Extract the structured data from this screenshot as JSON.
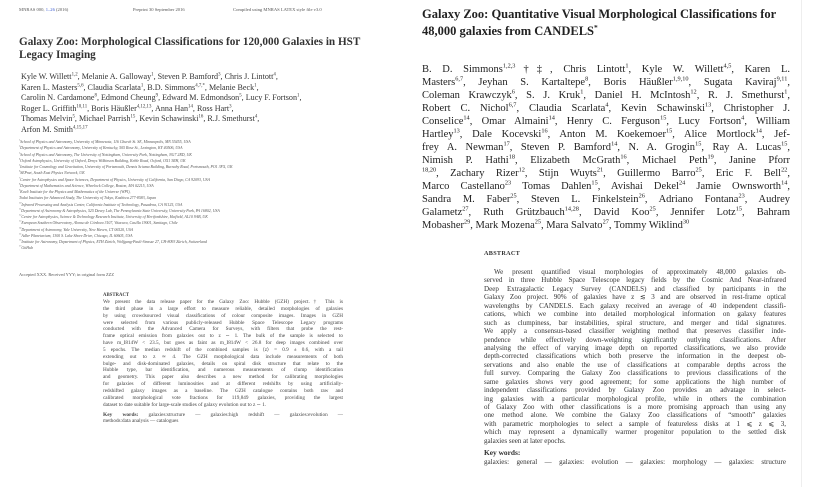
{
  "left_paper": {
    "running_head": {
      "journal": "MNRAS 000,",
      "pages": "1–26",
      "year": "(2016)",
      "preprint": "Preprint 30 September 2016",
      "compiled": "Compiled using MNRAS LATEX style file v3.0"
    },
    "title": "Galaxy Zoo: Morphological Classifications for 120,000 Galaxies in HST Legacy Imaging",
    "author_lines": [
      [
        [
          "Kyle W. Willett",
          "1,2"
        ],
        [
          ", Melanie A. Galloway",
          "1"
        ],
        [
          ", Steven P. Bamford",
          "3"
        ],
        [
          ", Chris J. Lintott",
          "4"
        ],
        [
          ",",
          ""
        ]
      ],
      [
        [
          "Karen L. Masters",
          "5,6"
        ],
        [
          ", Claudia Scarlata",
          "1"
        ],
        [
          ", B.D. Simmons",
          "4,7,*"
        ],
        [
          ", Melanie Beck",
          "1"
        ],
        [
          ",",
          ""
        ]
      ],
      [
        [
          "Carolin N. Cardamone",
          "8"
        ],
        [
          ", Edmond Cheung",
          "9"
        ],
        [
          ", Edward M. Edmondson",
          "5"
        ],
        [
          ", Lucy F. Fortson",
          "1"
        ],
        [
          ",",
          ""
        ]
      ],
      [
        [
          "Roger L. Griffith",
          "10,11"
        ],
        [
          ", Boris Häußler",
          "4,12,13"
        ],
        [
          ", Anna Han",
          "14"
        ],
        [
          ", Ross Hart",
          "3"
        ],
        [
          ",",
          ""
        ]
      ],
      [
        [
          "Thomas Melvin",
          "5"
        ],
        [
          ", Michael Parrish",
          "15"
        ],
        [
          ", Kevin Schawinski",
          "16"
        ],
        [
          ", R.J. Smethurst",
          "4"
        ],
        [
          ",",
          ""
        ]
      ],
      [
        [
          "Arfon M. Smith",
          "4,15,17"
        ]
      ]
    ],
    "affiliations": [
      [
        "1",
        "School of Physics and Astronomy, University of Minnesota, 116 Church St. SE, Minneapolis, MN 55455, USA"
      ],
      [
        "2",
        "Department of Physics and Astronomy, University of Kentucky, 505 Rose St., Lexington, KY 40506, USA"
      ],
      [
        "3",
        "School of Physics and Astronomy, The University of Nottingham, University Park, Nottingham, NG7 2RD, UK"
      ],
      [
        "4",
        "Oxford Astrophysics, University of Oxford, Denys Wilkinson Building, Keble Road, Oxford, OX1 3RH, UK"
      ],
      [
        "5",
        "Institute for Cosmology and Gravitation, University of Portsmouth, Dennis Sciama Building, Burnaby Road, Portsmouth, PO1 3FX, UK"
      ],
      [
        "6",
        "SEPnet, South East Physics Network, UK"
      ],
      [
        "7",
        "Center for Astrophysics and Space Sciences, Department of Physics, University of California, San Diego, CA 92093, USA"
      ],
      [
        "8",
        "Department of Mathematics and Science, Wheelock College, Boston, MA 02215, USA"
      ],
      [
        "9",
        "Kavli Institute for the Physics and Mathematics of the Universe (WPI),"
      ],
      [
        "",
        "Todai Institutes for Advanced Study, The University of Tokyo, Kashiwa 277-8583, Japan"
      ],
      [
        "10",
        "Infrared Processing and Analysis Center, California Institute of Technology, Pasadena, CA 91125, USA"
      ],
      [
        "11",
        "Department of Astronomy & Astrophysics, 525 Davey Lab, The Pennsylvania State University, University Park, PA 16802, USA"
      ],
      [
        "12",
        "Centre for Astrophysics, Science & Technology Research Institute, University of Hertfordshire, Hatfield, AL10 9AB, UK"
      ],
      [
        "13",
        "European Southern Observatory, Alonso de Córdova 3107, Vitacura, Casilla 19001, Santiago, Chile"
      ],
      [
        "14",
        "Department of Astronomy, Yale University, New Haven, CT 06520, USA"
      ],
      [
        "15",
        "Adler Planetarium, 1300 S. Lake Shore Drive, Chicago, IL 60605, USA"
      ],
      [
        "16",
        "Institute for Astronomy, Department of Physics, ETH Zürich, Wolfgang-Pauli-Strasse 27, CH-8093 Zürich, Switzerland"
      ],
      [
        "17",
        "GitHub"
      ]
    ],
    "accepted": "Accepted XXX. Received YYY; in original form ZZZ",
    "abstract_heading": "ABSTRACT",
    "abstract_lines": [
      "We present the data release paper for the Galaxy Zoo: Hubble (GZH) project.† This is",
      "the third phase in a large effort to measure reliable, detailed morphologies of galaxies",
      "by using crowdsourced visual classifications of colour composite images. Images in GZH",
      "were selected from various publicly-released Hubble Space Telescope Legacy programs",
      "conducted with the Advanced Camera for Surveys, with filters that probe the rest-",
      "frame optical emission from galaxies out to z ∼ 1. The bulk of the sample is selected to",
      "have m_I814W < 23.5, but goes as faint as m_I814W < 26.8 for deep images combined over",
      "5 epochs. The median redshift of the combined samples is ⟨z⟩ = 0.9 ± 0.6, with a tail",
      "extending out to z ≃ 4. The GZH morphological data include measurements of both",
      "bulge- and disk-dominated galaxies, details on spiral disk structure that relate to the",
      "Hubble type, bar identification, and numerous measurements of clump identification",
      "and geometry. This paper also describes a new method for calibrating morphologies",
      "for galaxies of different luminosities and at different redshifts by using artificially-",
      "redshifted galaxy images as a baseline. The GZH catalogue contains both raw and",
      "calibrated morphological vote fractions for 119,849 galaxies, providing the largest",
      "dataset to date suitable for large-scale studies of galaxy evolution out to z ∼ 1."
    ],
    "keywords_label": "Key words:",
    "keywords_lines": [
      "galaxies:structure — galaxies:high redshift — galaxies:evolution —",
      "methods:data analysis — catalogues"
    ]
  },
  "right_paper": {
    "title": "Galaxy Zoo: Quantitative Visual Morphological Classifications for 48,000 galaxies from CANDELS",
    "title_mark": "*",
    "author_lines": [
      [
        [
          "B. D. Simmons",
          "1,2,3"
        ],
        [
          "†‡, Chris Lintott",
          "1"
        ],
        [
          ", Kyle W. Willett",
          "4,5"
        ],
        [
          ", Karen L.",
          ""
        ]
      ],
      [
        [
          "Masters",
          "6,7"
        ],
        [
          ", Jeyhan S. Kartaltepe",
          "8"
        ],
        [
          ", Boris Häußler",
          "1,9,10"
        ],
        [
          ", Sugata Kaviraj",
          "9,11"
        ],
        [
          ",",
          ""
        ]
      ],
      [
        [
          "Coleman Krawczyk",
          "6"
        ],
        [
          ", S. J. Kruk",
          "1"
        ],
        [
          ", Daniel H. McIntosh",
          "12"
        ],
        [
          ", R. J. Smethurst",
          "1"
        ],
        [
          ",",
          ""
        ]
      ],
      [
        [
          "Robert C. Nichol",
          "6,7"
        ],
        [
          ", Claudia Scarlata",
          "4"
        ],
        [
          ", Kevin Schawinski",
          "13"
        ],
        [
          ", Christopher J.",
          ""
        ]
      ],
      [
        [
          "Conselice",
          "14"
        ],
        [
          ", Omar Almaini",
          "14"
        ],
        [
          ", Henry C. Ferguson",
          "15"
        ],
        [
          ", Lucy Fortson",
          "4"
        ],
        [
          ", William",
          ""
        ]
      ],
      [
        [
          "Hartley",
          "13"
        ],
        [
          ", Dale Kocevski",
          "16"
        ],
        [
          ", Anton M. Koekemoer",
          "15"
        ],
        [
          ", Alice Mortlock",
          "14"
        ],
        [
          ", Jef-",
          ""
        ]
      ],
      [
        [
          "frey A. Newman",
          "17"
        ],
        [
          ", Steven P. Bamford",
          "14"
        ],
        [
          ", N. A. Grogin",
          "15"
        ],
        [
          ", Ray A. Lucas",
          "15"
        ],
        [
          ",",
          ""
        ]
      ],
      [
        [
          "Nimish P. Hathi",
          "18"
        ],
        [
          ", Elizabeth McGrath",
          "16"
        ],
        [
          ", Michael Peth",
          "19"
        ],
        [
          ", Janine Pforr",
          ""
        ]
      ],
      [
        [
          "",
          "18,20"
        ],
        [
          ", Zachary Rizer",
          "12"
        ],
        [
          ", Stijn Wuyts",
          "21"
        ],
        [
          ", Guillermo Barro",
          "25"
        ],
        [
          ", Eric F. Bell",
          "22"
        ],
        [
          ",",
          ""
        ]
      ],
      [
        [
          "Marco Castellano",
          "23"
        ],
        [
          " Tomas Dahlen",
          "15"
        ],
        [
          ", Avishai Dekel",
          "24"
        ],
        [
          " Jamie Ownsworth",
          "14"
        ],
        [
          ",",
          ""
        ]
      ],
      [
        [
          "Sandra M. Faber",
          "25"
        ],
        [
          ", Steven L. Finkelstein",
          "26"
        ],
        [
          ", Adriano Fontana",
          "23"
        ],
        [
          ", Audrey",
          ""
        ]
      ],
      [
        [
          "Galametz",
          "27"
        ],
        [
          ", Ruth Grützbauch",
          "14,28"
        ],
        [
          ", David Koo",
          "25"
        ],
        [
          ", Jennifer Lotz",
          "15"
        ],
        [
          ", Bahram",
          ""
        ]
      ],
      [
        [
          "Mobasher",
          "29"
        ],
        [
          ", Mark Mozena",
          "25"
        ],
        [
          ", Mara Salvato",
          "27"
        ],
        [
          ", Tommy Wiklind",
          "30"
        ]
      ]
    ],
    "abstract_heading": "ABSTRACT",
    "abstract_lines": [
      "We present quantified visual morphologies of approximately 48,000 galaxies ob-",
      "served in three Hubble Space Telescope legacy fields by the Cosmic And Near-infrared",
      "Deep Extragalactic Legacy Survey (CANDELS) and classified by participants in the",
      "Galaxy Zoo project. 90% of galaxies have z ≲ 3 and are observed in rest-frame optical",
      "wavelengths by CANDELS. Each galaxy received an average of 40 independent classifi-",
      "cations, which we combine into detailed morphological information on galaxy features",
      "such as clumpiness, bar instabilities, spiral structure, and merger and tidal signatures.",
      "We apply a consensus-based classifier weighting method that preserves classifier inde-",
      "pendence while effectively down-weighting significantly outlying classifications. After",
      "analysing the effect of varying image depth on reported classifications, we also provide",
      "depth-corrected classifications which both preserve the information in the deepest ob-",
      "servations and also enable the use of classifications at comparable depths across the",
      "full survey. Comparing the Galaxy Zoo classifications to previous classifications of the",
      "same galaxies shows very good agreement; for some applications the high number of",
      "independent classifications provided by Galaxy Zoo provides an advatage in select-",
      "ing galaxies with a particular morphological profile, while in others the combination",
      "of Galaxy Zoo with other classifications is a more promising approach than using any",
      "one method alone. We combine the Galaxy Zoo classifications of “smooth” galaxies",
      "with parametric morphologies to select a sample of featureless disks at 1 ⩽ z ⩽ 3,",
      "which may represent a dynamically warmer progenitor population to the settled disk",
      "galaxies seen at later epochs."
    ],
    "keywords_label": "Key words:",
    "keywords_line": "galaxies: general — galaxies: evolution — galaxies: morphology — galaxies: structure"
  }
}
